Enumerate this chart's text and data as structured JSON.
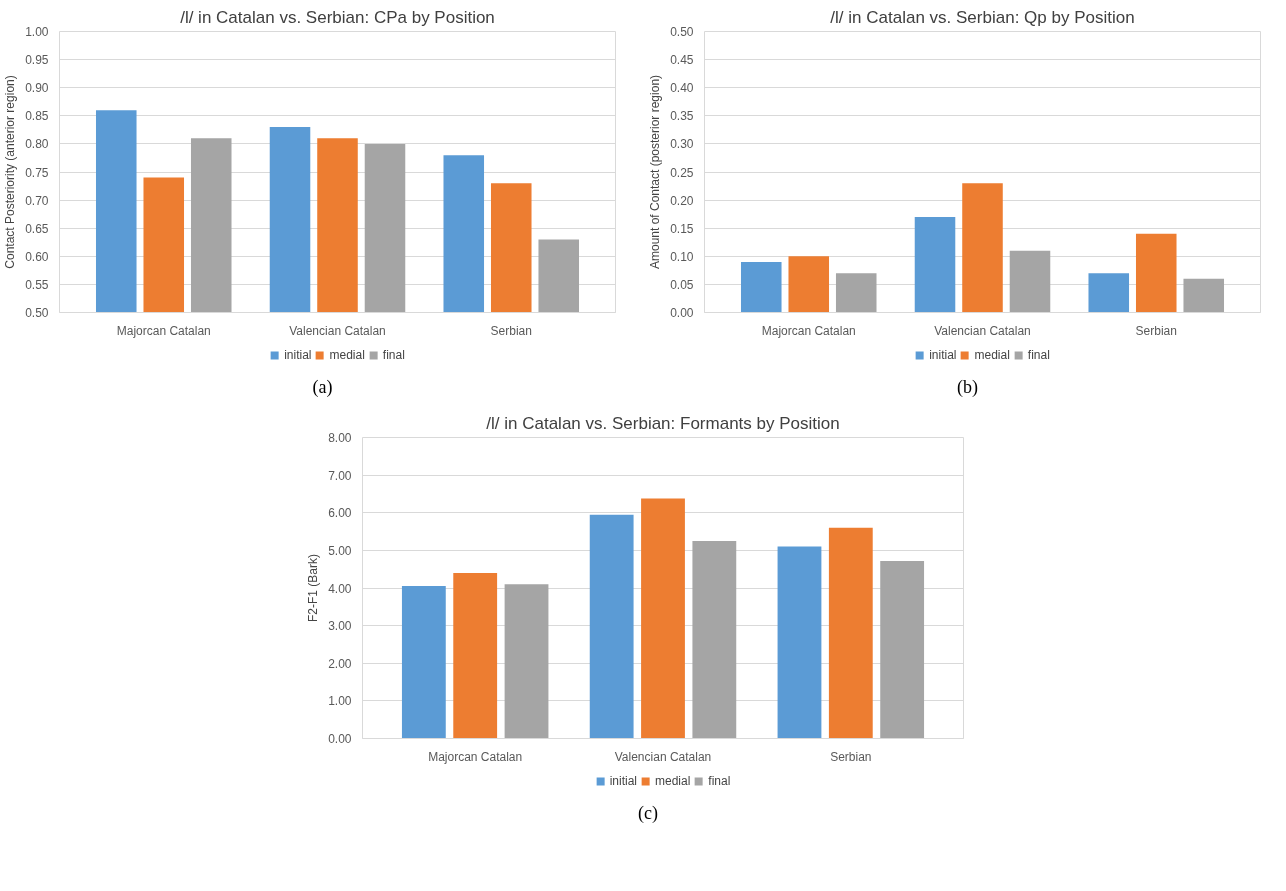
{
  "chart_data": [
    {
      "type": "bar",
      "title": "/l/ in Catalan vs. Serbian: CPa by Position",
      "ylabel": "Contact Posteriority (anterior region)",
      "categories": [
        "Majorcan Catalan",
        "Valencian Catalan",
        "Serbian"
      ],
      "series": [
        {
          "name": "initial",
          "color": "#5b9bd5",
          "values": [
            0.86,
            0.83,
            0.78
          ]
        },
        {
          "name": "medial",
          "color": "#ed7d31",
          "values": [
            0.74,
            0.81,
            0.73
          ]
        },
        {
          "name": "final",
          "color": "#a5a5a5",
          "values": [
            0.81,
            0.8,
            0.63
          ]
        }
      ],
      "ylim": [
        0.5,
        1.0
      ],
      "yticks": [
        {
          "value": 0.5,
          "label": "0.50"
        },
        {
          "value": 0.55,
          "label": "0.55"
        },
        {
          "value": 0.6,
          "label": "0.60"
        },
        {
          "value": 0.65,
          "label": "0.65"
        },
        {
          "value": 0.7,
          "label": "0.70"
        },
        {
          "value": 0.75,
          "label": "0.75"
        },
        {
          "value": 0.8,
          "label": "0.80"
        },
        {
          "value": 0.85,
          "label": "0.85"
        },
        {
          "value": 0.9,
          "label": "0.90"
        },
        {
          "value": 0.95,
          "label": "0.95"
        },
        {
          "value": 1.0,
          "label": "1.00"
        }
      ],
      "grid": "y",
      "legend": "bottom",
      "annotations": [
        "(a)"
      ]
    },
    {
      "type": "bar",
      "title": "/l/ in Catalan vs. Serbian: Qp by Position",
      "ylabel": "Amount of Contact (posterior region)",
      "categories": [
        "Majorcan Catalan",
        "Valencian Catalan",
        "Serbian"
      ],
      "series": [
        {
          "name": "initial",
          "color": "#5b9bd5",
          "values": [
            0.09,
            0.17,
            0.07
          ]
        },
        {
          "name": "medial",
          "color": "#ed7d31",
          "values": [
            0.1,
            0.23,
            0.14
          ]
        },
        {
          "name": "final",
          "color": "#a5a5a5",
          "values": [
            0.07,
            0.11,
            0.06
          ]
        }
      ],
      "ylim": [
        0,
        0.5
      ],
      "yticks": [
        {
          "value": 0,
          "label": "0.00"
        },
        {
          "value": 0.05,
          "label": "0.05"
        },
        {
          "value": 0.1,
          "label": "0.10"
        },
        {
          "value": 0.15,
          "label": "0.15"
        },
        {
          "value": 0.2,
          "label": "0.20"
        },
        {
          "value": 0.25,
          "label": "0.25"
        },
        {
          "value": 0.3,
          "label": "0.30"
        },
        {
          "value": 0.35,
          "label": "0.35"
        },
        {
          "value": 0.4,
          "label": "0.40"
        },
        {
          "value": 0.45,
          "label": "0.45"
        },
        {
          "value": 0.5,
          "label": "0.50"
        }
      ],
      "grid": "y",
      "legend": "bottom",
      "annotations": [
        "(b)"
      ]
    },
    {
      "type": "bar",
      "title": "/l/ in Catalan vs. Serbian: Formants by Position",
      "ylabel": "F2-F1 (Bark)",
      "categories": [
        "Majorcan Catalan",
        "Valencian Catalan",
        "Serbian"
      ],
      "series": [
        {
          "name": "initial",
          "color": "#5b9bd5",
          "values": [
            4.05,
            5.95,
            5.1
          ]
        },
        {
          "name": "medial",
          "color": "#ed7d31",
          "values": [
            4.4,
            6.38,
            5.6
          ]
        },
        {
          "name": "final",
          "color": "#a5a5a5",
          "values": [
            4.1,
            5.25,
            4.72
          ]
        }
      ],
      "ylim": [
        0,
        8
      ],
      "yticks": [
        {
          "value": 0,
          "label": "0.00"
        },
        {
          "value": 1,
          "label": "1.00"
        },
        {
          "value": 2,
          "label": "2.00"
        },
        {
          "value": 3,
          "label": "3.00"
        },
        {
          "value": 4,
          "label": "4.00"
        },
        {
          "value": 5,
          "label": "5.00"
        },
        {
          "value": 6,
          "label": "6.00"
        },
        {
          "value": 7,
          "label": "7.00"
        },
        {
          "value": 8,
          "label": "8.00"
        }
      ],
      "grid": "y",
      "legend": "bottom",
      "annotations": [
        "(c)"
      ]
    }
  ]
}
